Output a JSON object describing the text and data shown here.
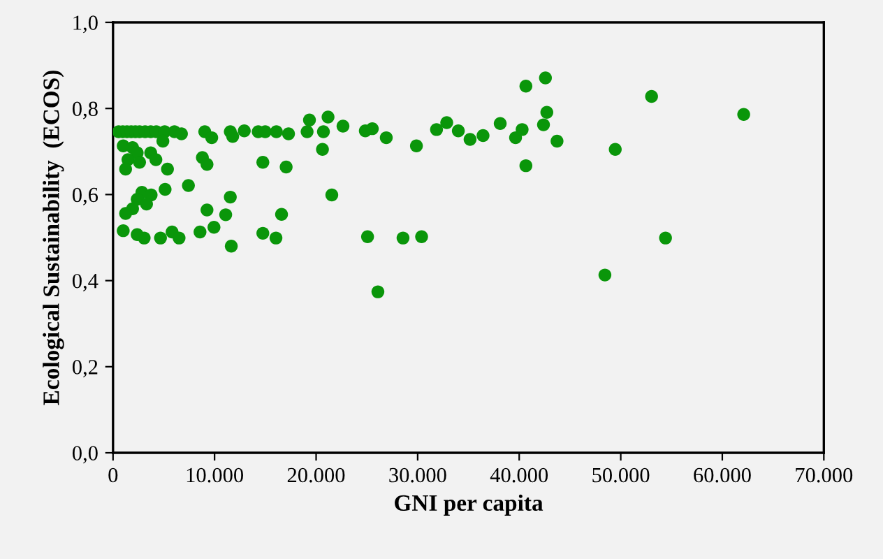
{
  "chart_data": {
    "type": "scatter",
    "xlabel": "GNI per capita",
    "ylabel": "Ecological Sustainability  (ECOS)",
    "x": [
      550,
      963,
      1375,
      1788,
      2200,
      2613,
      3163,
      3713,
      4263,
      5088,
      6050,
      6738,
      9034,
      9721,
      11550,
      11784,
      12925,
      14300,
      14988,
      16088,
      17284,
      19346,
      21175,
      22646,
      19113,
      20721,
      20625,
      1004,
      1925,
      2379,
      1471,
      3713,
      4221,
      4909,
      1238,
      2613,
      5363,
      8800,
      9254,
      14754,
      17050,
      7425,
      5129,
      2846,
      3754,
      2379,
      3300,
      1925,
      1238,
      11550,
      9254,
      11096,
      16596,
      21546,
      1004,
      2379,
      3066,
      4675,
      5816,
      6504,
      8566,
      9941,
      14754,
      16046,
      11646,
      24846,
      25534,
      26909,
      29879,
      31859,
      32863,
      34004,
      35161,
      36438,
      38129,
      39641,
      40288,
      40659,
      42584,
      42721,
      42391,
      43725,
      40659,
      25066,
      28559,
      30388,
      26084,
      53034,
      62109,
      49459,
      54409,
      48441
    ],
    "values": [
      0.746,
      0.746,
      0.746,
      0.746,
      0.746,
      0.746,
      0.746,
      0.746,
      0.746,
      0.746,
      0.746,
      0.741,
      0.746,
      0.732,
      0.746,
      0.735,
      0.748,
      0.746,
      0.746,
      0.746,
      0.741,
      0.773,
      0.78,
      0.759,
      0.746,
      0.746,
      0.705,
      0.713,
      0.709,
      0.697,
      0.681,
      0.697,
      0.681,
      0.724,
      0.659,
      0.675,
      0.659,
      0.686,
      0.67,
      0.675,
      0.664,
      0.621,
      0.612,
      0.605,
      0.599,
      0.589,
      0.578,
      0.567,
      0.556,
      0.594,
      0.564,
      0.553,
      0.554,
      0.599,
      0.516,
      0.507,
      0.499,
      0.499,
      0.513,
      0.499,
      0.513,
      0.524,
      0.51,
      0.499,
      0.48,
      0.748,
      0.753,
      0.732,
      0.713,
      0.751,
      0.767,
      0.748,
      0.728,
      0.737,
      0.765,
      0.732,
      0.751,
      0.852,
      0.871,
      0.791,
      0.762,
      0.724,
      0.667,
      0.502,
      0.499,
      0.502,
      0.374,
      0.828,
      0.786,
      0.705,
      0.499,
      0.413
    ],
    "color": "#0a960a",
    "marker": "circle",
    "grid": false,
    "legend": false,
    "xlim": [
      0,
      70000
    ],
    "ylim": [
      0,
      1
    ],
    "xticks": [
      {
        "value": 0,
        "label": "0"
      },
      {
        "value": 10000,
        "label": "10.000"
      },
      {
        "value": 20000,
        "label": "20.000"
      },
      {
        "value": 30000,
        "label": "30.000"
      },
      {
        "value": 40000,
        "label": "40.000"
      },
      {
        "value": 50000,
        "label": "50.000"
      },
      {
        "value": 60000,
        "label": "60.000"
      },
      {
        "value": 70000,
        "label": "70.000"
      }
    ],
    "yticks": [
      {
        "value": 0,
        "label": "0,0"
      },
      {
        "value": 0.2,
        "label": "0,2"
      },
      {
        "value": 0.4,
        "label": "0,4"
      },
      {
        "value": 0.6,
        "label": "0,6"
      },
      {
        "value": 0.8,
        "label": "0,8"
      },
      {
        "value": 1,
        "label": "1,0"
      }
    ]
  }
}
